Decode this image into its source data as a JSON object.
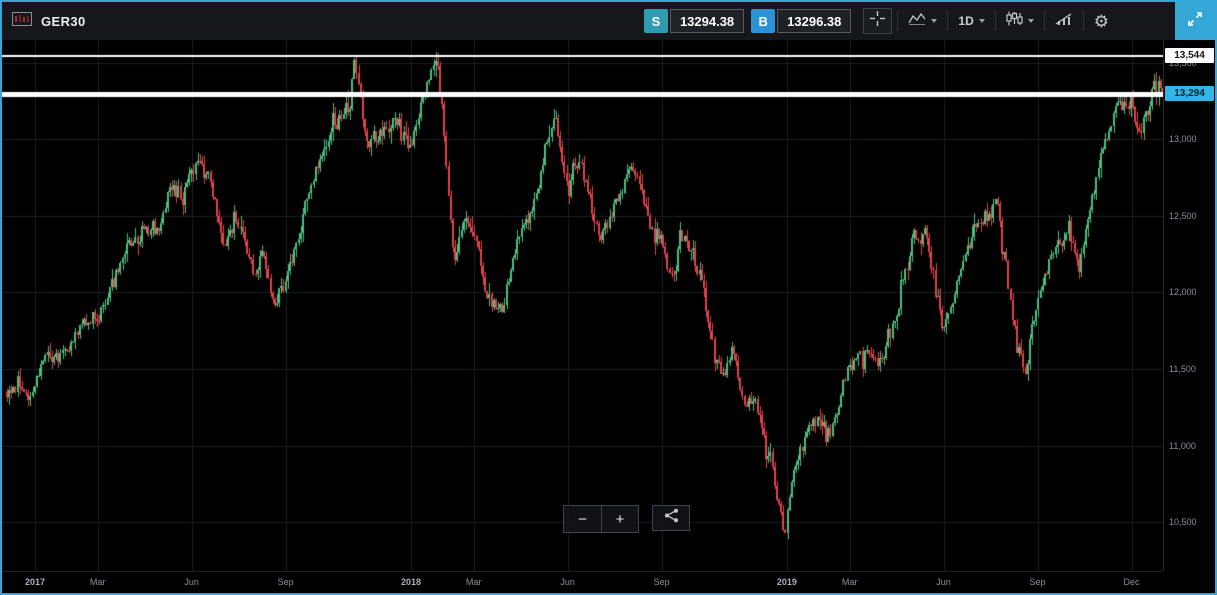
{
  "window": {
    "accent_color": "#35a7d7",
    "background": "#000000"
  },
  "toolbar": {
    "instrument": "GER30",
    "sell": {
      "label": "S",
      "price": "13294.38",
      "badge_color": "#2e9bb0"
    },
    "buy": {
      "label": "B",
      "price": "13296.38",
      "badge_color": "#2e93d6"
    },
    "timeframe": "1D"
  },
  "controls": {
    "zoom_out": "−",
    "zoom_in": "+"
  },
  "chart_data": {
    "type": "candlestick",
    "instrument": "GER30",
    "timeframe": "1D",
    "x_range": [
      "2016-12",
      "2019-12"
    ],
    "y_range": [
      10180,
      13650
    ],
    "grid": true,
    "colors": {
      "up": "#4ebe81",
      "down": "#e0444c"
    },
    "y_ticks": [
      {
        "price": 13500,
        "label": "13,500"
      },
      {
        "price": 13000,
        "label": "13,000"
      },
      {
        "price": 12500,
        "label": "12,500"
      },
      {
        "price": 12000,
        "label": "12,000"
      },
      {
        "price": 11500,
        "label": "11,500"
      },
      {
        "price": 11000,
        "label": "11,000"
      },
      {
        "price": 10500,
        "label": "10,500"
      }
    ],
    "x_ticks": [
      {
        "m": 0,
        "label": "2017"
      },
      {
        "m": 2,
        "label": "Mar"
      },
      {
        "m": 5,
        "label": "Jun"
      },
      {
        "m": 8,
        "label": "Sep"
      },
      {
        "m": 12,
        "label": "2018"
      },
      {
        "m": 14,
        "label": "Mar"
      },
      {
        "m": 17,
        "label": "Jun"
      },
      {
        "m": 20,
        "label": "Sep"
      },
      {
        "m": 24,
        "label": "2019"
      },
      {
        "m": 26,
        "label": "Mar"
      },
      {
        "m": 29,
        "label": "Jun"
      },
      {
        "m": 32,
        "label": "Sep"
      },
      {
        "m": 35,
        "label": "Dec"
      }
    ],
    "levels": [
      {
        "price": 13544,
        "label": "13,544",
        "role": "marked-high",
        "badge_bg": "#ffffff",
        "badge_fg": "#111418",
        "thickness": 2
      },
      {
        "price": 13294,
        "label": "13,294",
        "role": "current-price",
        "badge_bg": "#35b5e5",
        "badge_fg": "#07222e",
        "thickness": 5
      }
    ],
    "sell_price": 13294.38,
    "buy_price": 13296.38,
    "trend_anchors_month_price": [
      [
        -0.9,
        11350
      ],
      [
        -0.5,
        11420
      ],
      [
        -0.2,
        11300
      ],
      [
        0.3,
        11560
      ],
      [
        1,
        11600
      ],
      [
        1.5,
        11790
      ],
      [
        2,
        11830
      ],
      [
        2.5,
        12050
      ],
      [
        3,
        12310
      ],
      [
        3.5,
        12400
      ],
      [
        4,
        12440
      ],
      [
        4.3,
        12720
      ],
      [
        4.7,
        12620
      ],
      [
        5.2,
        12880
      ],
      [
        5.6,
        12720
      ],
      [
        6,
        12330
      ],
      [
        6.4,
        12480
      ],
      [
        7,
        12120
      ],
      [
        7.3,
        12260
      ],
      [
        7.6,
        11960
      ],
      [
        8,
        12060
      ],
      [
        8.5,
        12450
      ],
      [
        9,
        12830
      ],
      [
        9.5,
        13050
      ],
      [
        10,
        13230
      ],
      [
        10.2,
        13470
      ],
      [
        10.6,
        13010
      ],
      [
        11,
        13030
      ],
      [
        11.5,
        13130
      ],
      [
        12,
        12950
      ],
      [
        12.4,
        13270
      ],
      [
        12.8,
        13544
      ],
      [
        13,
        13190
      ],
      [
        13.4,
        12150
      ],
      [
        13.7,
        12480
      ],
      [
        14,
        12440
      ],
      [
        14.4,
        12010
      ],
      [
        14.9,
        11880
      ],
      [
        15.2,
        12180
      ],
      [
        15.6,
        12450
      ],
      [
        16,
        12610
      ],
      [
        16.3,
        12960
      ],
      [
        16.6,
        13180
      ],
      [
        17,
        12620
      ],
      [
        17.2,
        12890
      ],
      [
        17.6,
        12740
      ],
      [
        18,
        12320
      ],
      [
        18.5,
        12560
      ],
      [
        19,
        12800
      ],
      [
        19.3,
        12690
      ],
      [
        19.7,
        12400
      ],
      [
        20,
        12370
      ],
      [
        20.3,
        12060
      ],
      [
        20.6,
        12350
      ],
      [
        21,
        12250
      ],
      [
        21.4,
        11950
      ],
      [
        21.7,
        11550
      ],
      [
        22,
        11460
      ],
      [
        22.3,
        11630
      ],
      [
        22.6,
        11260
      ],
      [
        23,
        11270
      ],
      [
        23.3,
        11000
      ],
      [
        23.6,
        10760
      ],
      [
        23.95,
        10420
      ],
      [
        24.2,
        10820
      ],
      [
        24.6,
        11050
      ],
      [
        25,
        11180
      ],
      [
        25.4,
        11100
      ],
      [
        26,
        11520
      ],
      [
        26.5,
        11620
      ],
      [
        27,
        11530
      ],
      [
        27.5,
        11860
      ],
      [
        28,
        12340
      ],
      [
        28.4,
        12410
      ],
      [
        28.7,
        12070
      ],
      [
        29,
        11730
      ],
      [
        29.5,
        12110
      ],
      [
        30,
        12400
      ],
      [
        30.7,
        12600
      ],
      [
        31,
        12190
      ],
      [
        31.3,
        11720
      ],
      [
        31.6,
        11470
      ],
      [
        32,
        11950
      ],
      [
        32.5,
        12260
      ],
      [
        33,
        12430
      ],
      [
        33.3,
        12120
      ],
      [
        33.7,
        12570
      ],
      [
        34,
        12870
      ],
      [
        34.5,
        13210
      ],
      [
        35,
        13240
      ],
      [
        35.2,
        13060
      ],
      [
        35.5,
        13160
      ],
      [
        35.7,
        13330
      ],
      [
        36,
        13294
      ]
    ]
  }
}
